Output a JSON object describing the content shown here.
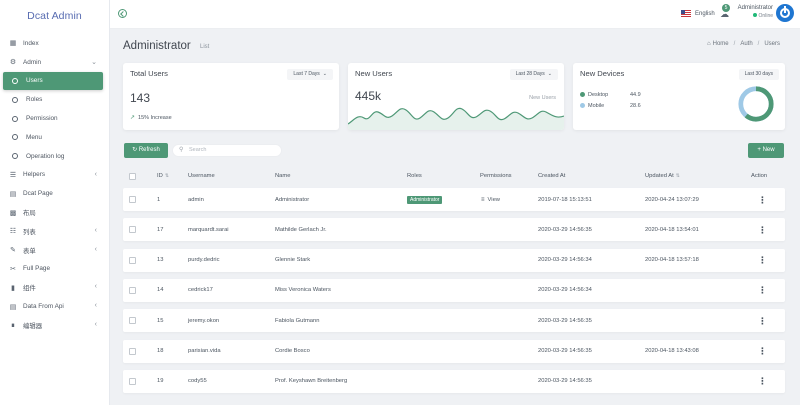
{
  "brand": "Dcat Admin",
  "sidebar": {
    "items": [
      {
        "label": "Index",
        "icon": "bar-chart-icon",
        "chevron": false
      },
      {
        "label": "Admin",
        "icon": "gear-icon",
        "chevron": true
      },
      {
        "label": "Users",
        "icon": "circle-icon",
        "sub": true,
        "active": true
      },
      {
        "label": "Roles",
        "icon": "circle-icon",
        "sub": true
      },
      {
        "label": "Permission",
        "icon": "circle-icon",
        "sub": true
      },
      {
        "label": "Menu",
        "icon": "circle-icon",
        "sub": true
      },
      {
        "label": "Operation log",
        "icon": "circle-icon",
        "sub": true
      },
      {
        "label": "Helpers",
        "icon": "layers-icon",
        "chevron": true
      },
      {
        "label": "Dcat Page",
        "icon": "file-icon",
        "chevron": false
      },
      {
        "label": "布局",
        "icon": "grid-icon",
        "chevron": false
      },
      {
        "label": "列表",
        "icon": "table-icon",
        "chevron": true
      },
      {
        "label": "表单",
        "icon": "edit-icon",
        "chevron": true
      },
      {
        "label": "Full Page",
        "icon": "scissors-icon",
        "chevron": false
      },
      {
        "label": "组件",
        "icon": "book-icon",
        "chevron": true
      },
      {
        "label": "Data From Api",
        "icon": "server-icon",
        "chevron": true
      },
      {
        "label": "编辑器",
        "icon": "editor-icon",
        "chevron": true
      }
    ]
  },
  "topbar": {
    "language": "English",
    "notifications": "5",
    "user_name": "Administrator",
    "user_status": "Online"
  },
  "page": {
    "title": "Administrator",
    "subtitle": "List",
    "breadcrumb": [
      "Home",
      "Auth",
      "Users"
    ]
  },
  "cards": {
    "total_users": {
      "title": "Total Users",
      "range": "Last 7 Days",
      "value": "143",
      "increase": "15% Increase"
    },
    "new_users": {
      "title": "New Users",
      "range": "Last 28 Days",
      "value": "445k",
      "label": "New Users"
    },
    "new_devices": {
      "title": "New Devices",
      "range": "Last 30 days",
      "legend": [
        {
          "name": "Desktop",
          "value": "44.9"
        },
        {
          "name": "Mobile",
          "value": "28.6"
        }
      ]
    }
  },
  "toolbar": {
    "refresh": "Refresh",
    "search_placeholder": "Search",
    "new": "New"
  },
  "table": {
    "headers": [
      "ID",
      "Username",
      "Name",
      "Roles",
      "Permissions",
      "Created At",
      "Updated At",
      "Action"
    ],
    "rows": [
      {
        "id": "1",
        "username": "admin",
        "name": "Administrator",
        "role": "Administrator",
        "perm": "View",
        "created": "2019-07-18 15:13:51",
        "updated": "2020-04-24 13:07:29"
      },
      {
        "id": "17",
        "username": "marquardt.sarai",
        "name": "Mathilde Gerlach Jr.",
        "role": "",
        "perm": "",
        "created": "2020-03-29 14:56:35",
        "updated": "2020-04-18 13:54:01"
      },
      {
        "id": "13",
        "username": "purdy.dedric",
        "name": "Glennie Stark",
        "role": "",
        "perm": "",
        "created": "2020-03-29 14:56:34",
        "updated": "2020-04-18 13:57:18"
      },
      {
        "id": "14",
        "username": "cedrick17",
        "name": "Miss Veronica Waters",
        "role": "",
        "perm": "",
        "created": "2020-03-29 14:56:34",
        "updated": ""
      },
      {
        "id": "15",
        "username": "jeremy.okon",
        "name": "Fabiola Gutmann",
        "role": "",
        "perm": "",
        "created": "2020-03-29 14:56:35",
        "updated": ""
      },
      {
        "id": "18",
        "username": "parisian.vida",
        "name": "Cordie Bosco",
        "role": "",
        "perm": "",
        "created": "2020-03-29 14:56:35",
        "updated": "2020-04-18 13:43:08"
      },
      {
        "id": "19",
        "username": "cody55",
        "name": "Prof. Keyshawn Breitenberg",
        "role": "",
        "perm": "",
        "created": "2020-03-29 14:56:35",
        "updated": ""
      }
    ]
  },
  "colors": {
    "accent": "#4e9876",
    "brand": "#586cb1",
    "mobile": "#9fc9e6"
  }
}
